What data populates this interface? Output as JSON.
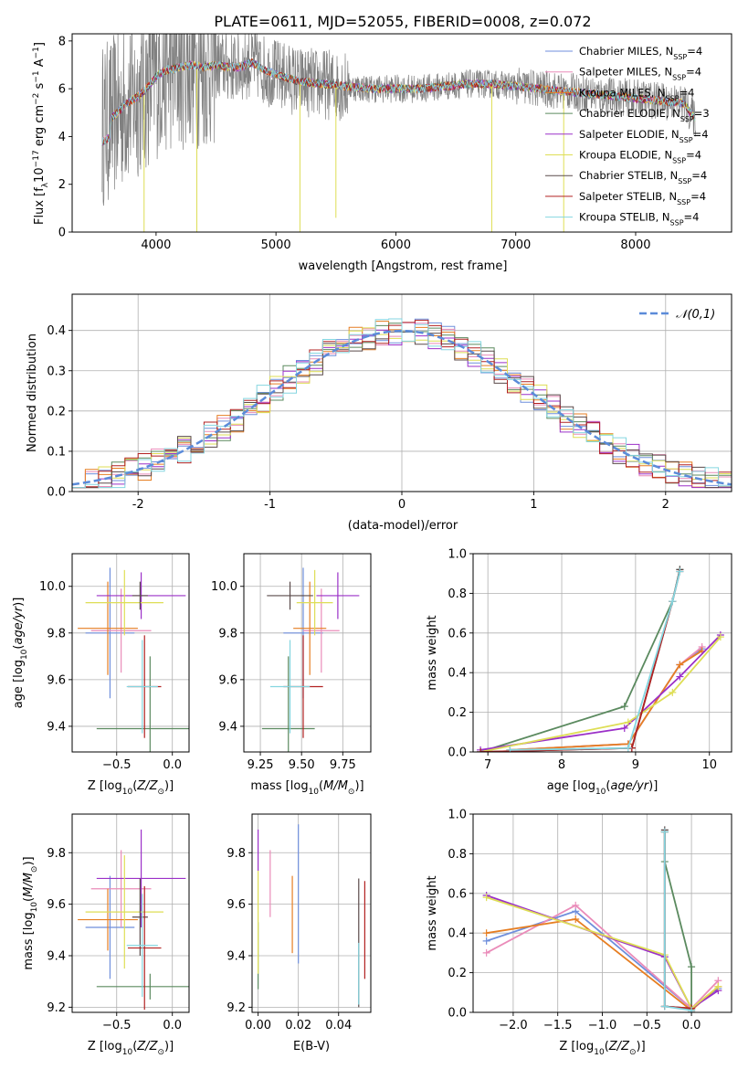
{
  "figure": {
    "title": "PLATE=0611, MJD=52055, FIBERID=0008, z=0.072"
  },
  "colors": {
    "palette": [
      "#6f8fdc",
      "#ea8bb9",
      "#e67e22",
      "#5b8a5f",
      "#9b30c8",
      "#dede55",
      "#5a4a4a",
      "#b22222",
      "#85d6e0"
    ],
    "data_spectrum": "#808080"
  },
  "chart_data": [
    {
      "id": "spectrum",
      "type": "line",
      "xlabel": "wavelength [Angstrom, rest frame]",
      "ylabel": "Flux [f_λ 10^-17 erg cm^-2 s^-1 A^-1]",
      "xlim": [
        3300,
        8800
      ],
      "ylim": [
        0,
        8.3
      ],
      "xticks": [
        4000,
        5000,
        6000,
        7000,
        8000
      ],
      "yticks": [
        0,
        2,
        4,
        6,
        8
      ],
      "grid": false,
      "legend_position": "top-right",
      "continuum": {
        "x": [
          3550,
          3600,
          3650,
          3700,
          3750,
          3800,
          3850,
          3900,
          3950,
          4000,
          4050,
          4100,
          4200,
          4300,
          4400,
          4500,
          4600,
          4700,
          4800,
          4900,
          5000,
          5200,
          5400,
          5600,
          5800,
          6000,
          6200,
          6400,
          6600,
          6800,
          7000,
          7200,
          7400,
          7600,
          7800,
          8000,
          8200,
          8400,
          8500
        ],
        "y": [
          4.5,
          4.6,
          4.9,
          5.1,
          5.4,
          5.5,
          5.7,
          5.9,
          6.2,
          6.5,
          6.7,
          6.8,
          6.9,
          7.0,
          6.9,
          7.0,
          6.9,
          6.9,
          7.1,
          6.8,
          6.6,
          6.3,
          6.2,
          6.1,
          6.0,
          6.0,
          6.0,
          6.1,
          6.2,
          6.2,
          6.1,
          6.0,
          5.9,
          5.8,
          5.7,
          5.6,
          5.5,
          5.4,
          4.7
        ]
      },
      "series": [
        {
          "name": "Chabrier MILES, N_SSP=4"
        },
        {
          "name": "Salpeter MILES, N_SSP=4"
        },
        {
          "name": "Kroupa MILES, N_SSP=4"
        },
        {
          "name": "Chabrier ELODIE, N_SSP=3"
        },
        {
          "name": "Salpeter ELODIE, N_SSP=4"
        },
        {
          "name": "Kroupa ELODIE, N_SSP=4"
        },
        {
          "name": "Chabrier STELIB, N_SSP=4"
        },
        {
          "name": "Salpeter STELIB, N_SSP=4"
        },
        {
          "name": "Kroupa STELIB, N_SSP=4"
        }
      ]
    },
    {
      "id": "residuals",
      "type": "histogram",
      "xlabel": "(data-model)/error",
      "ylabel": "Normed distribution",
      "xlim": [
        -2.5,
        2.5
      ],
      "ylim": [
        0,
        0.49
      ],
      "xticks": [
        -2,
        -1,
        0,
        1,
        2
      ],
      "yticks": [
        0.0,
        0.1,
        0.2,
        0.3,
        0.4
      ],
      "grid": true,
      "bin_width": 0.1,
      "legend": {
        "label": "𝒩(0,1)",
        "position": "top-right"
      }
    },
    {
      "id": "age-vs-Z",
      "type": "errorbar",
      "xlabel": "Z [log10(Z/Z☉)]",
      "ylabel": "age [log10(age/yr)]",
      "xlim": [
        -0.9,
        0.15
      ],
      "ylim": [
        9.29,
        10.14
      ],
      "xticks": [
        -0.5,
        0.0
      ],
      "xtick_labels": [
        "−0.5",
        "0.0"
      ],
      "yticks": [
        9.4,
        9.6,
        9.8,
        10.0
      ],
      "grid": true,
      "points": [
        {
          "x": -0.56,
          "xerr": 0.22,
          "y": 9.8,
          "yerr": 0.28
        },
        {
          "x": -0.46,
          "xerr": 0.27,
          "y": 9.81,
          "yerr": 0.18
        },
        {
          "x": -0.58,
          "xerr": 0.27,
          "y": 9.82,
          "yerr": 0.2
        },
        {
          "x": -0.2,
          "xerr": 0.48,
          "y": 9.39,
          "yerr": 0.31
        },
        {
          "x": -0.28,
          "xerr": 0.4,
          "y": 9.96,
          "yerr": 0.1
        },
        {
          "x": -0.43,
          "xerr": 0.35,
          "y": 9.93,
          "yerr": 0.14
        },
        {
          "x": -0.29,
          "xerr": 0.07,
          "y": 9.96,
          "yerr": 0.06
        },
        {
          "x": -0.25,
          "xerr": 0.15,
          "y": 9.57,
          "yerr": 0.22
        },
        {
          "x": -0.27,
          "xerr": 0.14,
          "y": 9.57,
          "yerr": 0.2
        }
      ]
    },
    {
      "id": "age-vs-mass",
      "type": "errorbar",
      "xlabel": "mass [log10(M/M☉)]",
      "ylabel": "",
      "xlim": [
        9.15,
        9.92
      ],
      "ylim": [
        9.29,
        10.14
      ],
      "xticks": [
        9.25,
        9.5,
        9.75
      ],
      "xtick_labels": [
        "9.25",
        "9.50",
        "9.75"
      ],
      "yticks": [
        9.4,
        9.6,
        9.8,
        10.0
      ],
      "grid": true,
      "points": [
        {
          "x": 9.51,
          "xerr": 0.12,
          "y": 9.8,
          "yerr": 0.28
        },
        {
          "x": 9.62,
          "xerr": 0.11,
          "y": 9.81,
          "yerr": 0.18
        },
        {
          "x": 9.55,
          "xerr": 0.1,
          "y": 9.82,
          "yerr": 0.2
        },
        {
          "x": 9.42,
          "xerr": 0.16,
          "y": 9.39,
          "yerr": 0.31
        },
        {
          "x": 9.72,
          "xerr": 0.13,
          "y": 9.96,
          "yerr": 0.1
        },
        {
          "x": 9.58,
          "xerr": 0.11,
          "y": 9.93,
          "yerr": 0.14
        },
        {
          "x": 9.43,
          "xerr": 0.14,
          "y": 9.96,
          "yerr": 0.06
        },
        {
          "x": 9.51,
          "xerr": 0.12,
          "y": 9.57,
          "yerr": 0.22
        },
        {
          "x": 9.43,
          "xerr": 0.12,
          "y": 9.57,
          "yerr": 0.2
        }
      ]
    },
    {
      "id": "weight-vs-age",
      "type": "line",
      "xlabel": "age [log10(age/yr)]",
      "ylabel": "mass weight",
      "xlim": [
        6.8,
        10.3
      ],
      "ylim": [
        0,
        1.0
      ],
      "xticks": [
        7,
        8,
        9,
        10
      ],
      "yticks": [
        0.0,
        0.2,
        0.4,
        0.6,
        0.8,
        1.0
      ],
      "grid": true,
      "lines": [
        {
          "x": [
            7.3,
            8.9,
            9.6,
            9.9
          ],
          "y": [
            0.01,
            0.04,
            0.44,
            0.52
          ]
        },
        {
          "x": [
            7.3,
            8.9,
            9.6,
            9.9
          ],
          "y": [
            0.01,
            0.04,
            0.44,
            0.53
          ]
        },
        {
          "x": [
            7.3,
            8.9,
            9.6,
            9.9
          ],
          "y": [
            0.01,
            0.04,
            0.44,
            0.51
          ]
        },
        {
          "x": [
            6.9,
            8.85,
            9.5,
            9.6
          ],
          "y": [
            0.0,
            0.23,
            0.76,
            0.92
          ]
        },
        {
          "x": [
            6.9,
            8.85,
            9.6,
            10.15
          ],
          "y": [
            0.01,
            0.12,
            0.38,
            0.59
          ]
        },
        {
          "x": [
            6.9,
            8.9,
            9.5,
            10.15
          ],
          "y": [
            0.0,
            0.15,
            0.3,
            0.58
          ]
        },
        {
          "x": [
            6.9,
            8.95,
            9.5,
            9.6
          ],
          "y": [
            0.0,
            0.02,
            0.76,
            0.92
          ]
        },
        {
          "x": [
            6.9,
            8.95,
            9.5,
            9.6
          ],
          "y": [
            0.0,
            0.02,
            0.76,
            0.91
          ]
        },
        {
          "x": [
            7.3,
            8.9,
            9.5,
            9.6
          ],
          "y": [
            0.01,
            0.02,
            0.76,
            0.91
          ]
        }
      ]
    },
    {
      "id": "mass-vs-Z",
      "type": "errorbar",
      "xlabel": "Z [log10(Z/Z☉)]",
      "ylabel": "mass [log10(M/M☉)]",
      "xlim": [
        -0.9,
        0.15
      ],
      "ylim": [
        9.18,
        9.95
      ],
      "xticks": [
        -0.5,
        0.0
      ],
      "xtick_labels": [
        "−0.5",
        "0.0"
      ],
      "yticks": [
        9.2,
        9.4,
        9.6,
        9.8
      ],
      "grid": true,
      "points": [
        {
          "x": -0.56,
          "xerr": 0.22,
          "y": 9.51,
          "yerr": 0.2
        },
        {
          "x": -0.46,
          "xerr": 0.27,
          "y": 9.66,
          "yerr": 0.15
        },
        {
          "x": -0.58,
          "xerr": 0.27,
          "y": 9.54,
          "yerr": 0.12
        },
        {
          "x": -0.2,
          "xerr": 0.48,
          "y": 9.28,
          "yerr": 0.05
        },
        {
          "x": -0.28,
          "xerr": 0.4,
          "y": 9.7,
          "yerr": 0.19
        },
        {
          "x": -0.43,
          "xerr": 0.35,
          "y": 9.57,
          "yerr": 0.22
        },
        {
          "x": -0.29,
          "xerr": 0.07,
          "y": 9.55,
          "yerr": 0.15
        },
        {
          "x": -0.25,
          "xerr": 0.15,
          "y": 9.43,
          "yerr": 0.24
        },
        {
          "x": -0.27,
          "xerr": 0.14,
          "y": 9.44,
          "yerr": 0.2
        }
      ]
    },
    {
      "id": "mass-vs-ebv",
      "type": "errorbar",
      "xlabel": "E(B-V)",
      "ylabel": "",
      "xlim": [
        -0.003,
        0.056
      ],
      "ylim": [
        9.18,
        9.95
      ],
      "xticks": [
        0.0,
        0.02,
        0.04
      ],
      "xtick_labels": [
        "0.00",
        "0.02",
        "0.04"
      ],
      "yticks": [
        9.2,
        9.4,
        9.6,
        9.8
      ],
      "grid": true,
      "points": [
        {
          "x": 0.02,
          "y": 9.64,
          "yerr": 0.27
        },
        {
          "x": 0.006,
          "y": 9.68,
          "yerr": 0.13
        },
        {
          "x": 0.017,
          "y": 9.56,
          "yerr": 0.15
        },
        {
          "x": 0.0,
          "y": 9.4,
          "yerr": 0.13
        },
        {
          "x": 0.0,
          "y": 9.81,
          "yerr": 0.08
        },
        {
          "x": 0.0,
          "y": 9.53,
          "yerr": 0.2
        },
        {
          "x": 0.05,
          "y": 9.45,
          "yerr": 0.25
        },
        {
          "x": 0.053,
          "y": 9.5,
          "yerr": 0.19
        },
        {
          "x": 0.05,
          "y": 9.33,
          "yerr": 0.12
        }
      ]
    },
    {
      "id": "weight-vs-Z",
      "type": "line",
      "xlabel": "Z [log10(Z/Z☉)]",
      "ylabel": "mass weight",
      "xlim": [
        -2.45,
        0.45
      ],
      "ylim": [
        0,
        1.0
      ],
      "xticks": [
        -2.0,
        -1.5,
        -1.0,
        -0.5,
        0.0
      ],
      "xtick_labels": [
        "−2.0",
        "−1.5",
        "−1.0",
        "−0.5",
        "0.0"
      ],
      "yticks": [
        0.0,
        0.2,
        0.4,
        0.6,
        0.8,
        1.0
      ],
      "grid": true,
      "lines": [
        {
          "x": [
            -2.3,
            -1.3,
            0.0,
            0.3
          ],
          "y": [
            0.36,
            0.51,
            0.02,
            0.12
          ]
        },
        {
          "x": [
            -2.3,
            -1.3,
            0.0,
            0.3
          ],
          "y": [
            0.3,
            0.54,
            0.02,
            0.16
          ]
        },
        {
          "x": [
            -2.3,
            -1.3,
            0.0,
            0.3
          ],
          "y": [
            0.4,
            0.47,
            0.01,
            0.13
          ]
        },
        {
          "x": [
            -0.3,
            -0.3,
            0.0,
            0.0
          ],
          "y": [
            0.91,
            0.76,
            0.23,
            0.0
          ]
        },
        {
          "x": [
            -2.3,
            -0.3,
            0.0,
            0.3
          ],
          "y": [
            0.59,
            0.28,
            0.02,
            0.11
          ]
        },
        {
          "x": [
            -2.3,
            -0.3,
            0.0,
            0.3
          ],
          "y": [
            0.58,
            0.29,
            0.02,
            0.13
          ]
        },
        {
          "x": [
            -0.3,
            -0.3,
            0.0,
            0.0
          ],
          "y": [
            0.92,
            0.03,
            0.02,
            0.01
          ]
        },
        {
          "x": [
            -0.3,
            -0.3,
            0.0,
            0.0
          ],
          "y": [
            0.91,
            0.03,
            0.02,
            0.0
          ]
        },
        {
          "x": [
            -0.3,
            -0.3,
            0.0,
            0.0
          ],
          "y": [
            0.91,
            0.03,
            0.01,
            0.0
          ]
        }
      ]
    }
  ]
}
